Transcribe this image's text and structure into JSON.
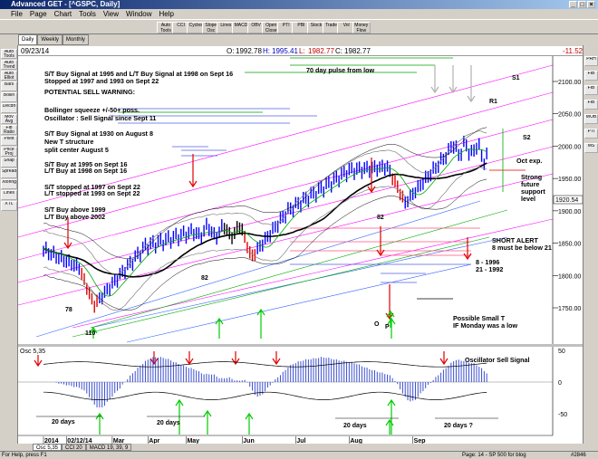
{
  "window": {
    "title": "Advanced GET - [^GSPC, Daily]"
  },
  "menu": [
    "File",
    "Page",
    "Chart",
    "Tools",
    "View",
    "Window",
    "Help"
  ],
  "toolbar_buttons": [
    "Auto Tools",
    "CCI",
    "Cycles",
    "Slope Osc",
    "Lines",
    "MACD",
    "OBV",
    "Open Close",
    "PTI",
    "PBI",
    "Stock",
    "Trade",
    "Vol",
    "Money Flow"
  ],
  "tabs": [
    "Daily",
    "Weekly",
    "Monthly"
  ],
  "left_buttons": [
    "Auto Tools",
    "Auto Trend",
    "Auto Elliot",
    "Bars",
    "Bollin",
    "Decdn",
    "Mov Avg",
    "Fib Ratio",
    "Pivot",
    "Price Proj",
    "Snap",
    "Spread",
    "Xtoring",
    "Lines",
    "XTL"
  ],
  "right_buttons": [
    "PRH",
    "FIB",
    "FIB",
    "FIB",
    "MOB",
    "PTI",
    "MS"
  ],
  "info": {
    "date": "09/23/14",
    "open_label": "O:",
    "open": "1992.78",
    "high_label": "H:",
    "high": "1995.41",
    "low_label": "L:",
    "low": "1982.77",
    "close_label": "C:",
    "close": "1982.77",
    "change": "-11.52"
  },
  "annotations": [
    "S/T Buy Signal at 1995 and L/T Buy Signal at 1998 on Sept 16",
    "Stopped at 1997 and 1993 on Sept 22",
    "POTENTIAL SELL WARNING:",
    "Bollinger squeeze +/-50+ poss.",
    "Oscillator : Sell Signal since Sept 11",
    "S/T Buy Signal at 1930 on August 8",
    "New T structure",
    "split center August 5",
    "S/T Buy at 1995 on Sept 16",
    "L/T Buy at 1998 on Sept 16",
    "S/T stopped at 1997 on Sept 22",
    "L/T stopped at 1993 on Sept 22",
    "S/T Buy above 1999",
    "L/T Buy above 2002",
    "70 day pulse from low",
    "Oct exp.",
    "Strong",
    "future",
    "support",
    "level",
    "SHORT ALERT",
    "8 must be below 21",
    "8   - 1996",
    "21 - 1992",
    "Possible Small T",
    "IF Monday was a low",
    "Oscillator Sell Signal"
  ],
  "price_labels": {
    "s1": "S1",
    "r1": "R1",
    "s2": "S2",
    "o": "O",
    "p": "P",
    "l78": "78",
    "l110": "110",
    "l82a": "82",
    "l82b": "82",
    "current": "1920.54"
  },
  "price_axis": [
    "2100.00",
    "2050.00",
    "2000.00",
    "1950.00",
    "1900.00",
    "1850.00",
    "1800.00",
    "1750.00"
  ],
  "osc": {
    "label": "Osc 5,35",
    "axis": [
      "50",
      "0",
      "-50"
    ],
    "days": [
      "20 days",
      "20 days",
      "20 days",
      "20 days ?"
    ]
  },
  "x_axis": [
    "2014",
    "02/12/14",
    "Mar",
    "Apr",
    "May",
    "Jun",
    "Jul",
    "Aug",
    "Sep"
  ],
  "bottom_tabs": [
    "Osc 5,35",
    "CCI 20",
    "MACD 19, 39, 9"
  ],
  "status": {
    "help": "For Help, press F1",
    "page": "Page: 14 - SP 500 for blog",
    "code": "#2846"
  },
  "colors": {
    "price_bar": "#0000ff",
    "ma_black": "#000000",
    "ma_green": "#00aa00",
    "channel": "#ff00ff",
    "arrow_red": "#e00000",
    "arrow_green": "#00cc00",
    "annot_blue": "#3a4fd0"
  }
}
